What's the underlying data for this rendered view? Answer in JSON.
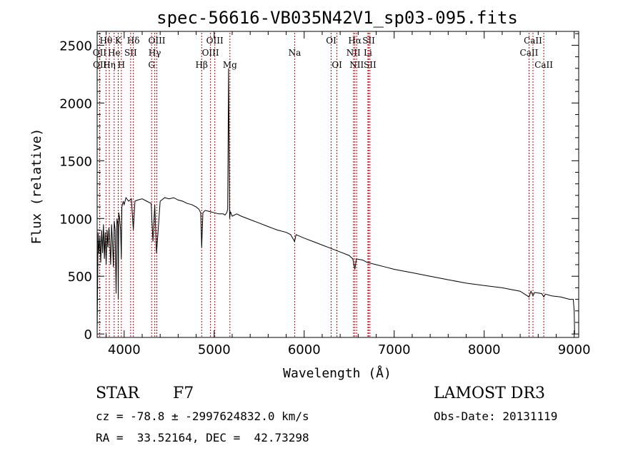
{
  "chart_data": {
    "type": "line",
    "title": "spec-56616-VB035N42V1_sp03-095.fits",
    "xlabel": "Wavelength (Å)",
    "ylabel": "Flux (relative)",
    "xlim": [
      3700,
      9050
    ],
    "ylim": [
      -30,
      2620
    ],
    "xticks": [
      4000,
      5000,
      6000,
      7000,
      8000,
      9000
    ],
    "xtick_labels": [
      "4000",
      "5000",
      "6000",
      "7000",
      "8000",
      "9000"
    ],
    "yticks": [
      0,
      500,
      1000,
      1500,
      2000,
      2500
    ],
    "ytick_labels": [
      "0",
      "500",
      "1000",
      "1500",
      "2000",
      "2500"
    ],
    "grid": false,
    "series": [
      {
        "name": "flux",
        "x": [
          3700,
          3710,
          3720,
          3730,
          3740,
          3750,
          3760,
          3770,
          3780,
          3790,
          3800,
          3810,
          3820,
          3830,
          3840,
          3850,
          3860,
          3870,
          3880,
          3890,
          3900,
          3910,
          3920,
          3930,
          3934,
          3940,
          3950,
          3960,
          3968,
          3975,
          3990,
          4000,
          4020,
          4050,
          4080,
          4102,
          4120,
          4150,
          4200,
          4250,
          4300,
          4320,
          4340,
          4360,
          4400,
          4450,
          4500,
          4550,
          4600,
          4650,
          4700,
          4750,
          4800,
          4830,
          4850,
          4861,
          4875,
          4900,
          4950,
          5000,
          5050,
          5100,
          5120,
          5140,
          5150,
          5160,
          5167,
          5172,
          5180,
          5200,
          5250,
          5300,
          5400,
          5500,
          5600,
          5700,
          5800,
          5850,
          5893,
          5910,
          6000,
          6100,
          6200,
          6300,
          6400,
          6500,
          6540,
          6563,
          6580,
          6650,
          6700,
          6800,
          6900,
          7000,
          7200,
          7400,
          7600,
          7800,
          8000,
          8200,
          8400,
          8498,
          8520,
          8542,
          8560,
          8600,
          8640,
          8662,
          8680,
          8750,
          8850,
          8950,
          8990,
          9000,
          9005
        ],
        "values": [
          0,
          880,
          700,
          850,
          620,
          900,
          700,
          950,
          650,
          880,
          600,
          900,
          750,
          920,
          820,
          600,
          950,
          800,
          580,
          980,
          900,
          350,
          1000,
          950,
          300,
          1050,
          1000,
          900,
          650,
          1100,
          1150,
          1120,
          1180,
          1150,
          1170,
          900,
          1150,
          1160,
          1170,
          1150,
          1130,
          800,
          1120,
          700,
          1150,
          1180,
          1170,
          1180,
          1160,
          1150,
          1130,
          1120,
          1100,
          1080,
          1050,
          750,
          1050,
          1070,
          1060,
          1050,
          1040,
          1040,
          1030,
          1050,
          1080,
          2300,
          1500,
          1000,
          1060,
          1020,
          1040,
          1020,
          990,
          960,
          930,
          900,
          880,
          860,
          800,
          860,
          830,
          800,
          770,
          740,
          710,
          680,
          650,
          560,
          650,
          640,
          620,
          600,
          580,
          560,
          530,
          500,
          470,
          440,
          420,
          400,
          370,
          320,
          370,
          330,
          360,
          355,
          350,
          320,
          345,
          330,
          320,
          300,
          300,
          200,
          0
        ]
      }
    ],
    "line_markers": [
      {
        "label": "Hθ",
        "wavelength": 3798,
        "row": 1
      },
      {
        "label": "OII",
        "wavelength": 3727,
        "row": 2
      },
      {
        "label": "OII",
        "wavelength": 3729,
        "row": 3
      },
      {
        "label": "He",
        "wavelength": 3889,
        "row": 2
      },
      {
        "label": "Hη",
        "wavelength": 3835,
        "row": 3
      },
      {
        "label": "K",
        "wavelength": 3934,
        "row": 1
      },
      {
        "label": "H",
        "wavelength": 3969,
        "row": 3
      },
      {
        "label": "SII",
        "wavelength": 4072,
        "row": 2
      },
      {
        "label": "Hδ",
        "wavelength": 4102,
        "row": 1
      },
      {
        "label": "OIII",
        "wavelength": 4363,
        "row": 1
      },
      {
        "label": "Hγ",
        "wavelength": 4340,
        "row": 2
      },
      {
        "label": "G",
        "wavelength": 4305,
        "row": 3
      },
      {
        "label": "Hβ",
        "wavelength": 4861,
        "row": 3
      },
      {
        "label": "OIII",
        "wavelength": 5007,
        "row": 1
      },
      {
        "label": "OIII",
        "wavelength": 4959,
        "row": 2
      },
      {
        "label": "Mg",
        "wavelength": 5175,
        "row": 3
      },
      {
        "label": "Na",
        "wavelength": 5894,
        "row": 2
      },
      {
        "label": "OI",
        "wavelength": 6300,
        "row": 1
      },
      {
        "label": "OI",
        "wavelength": 6364,
        "row": 3
      },
      {
        "label": "Hα",
        "wavelength": 6563,
        "row": 1
      },
      {
        "label": "NII",
        "wavelength": 6548,
        "row": 2
      },
      {
        "label": "NII",
        "wavelength": 6583,
        "row": 3
      },
      {
        "label": "SII",
        "wavelength": 6717,
        "row": 1
      },
      {
        "label": "Li",
        "wavelength": 6708,
        "row": 2
      },
      {
        "label": "SII",
        "wavelength": 6731,
        "row": 3
      },
      {
        "label": "CaII",
        "wavelength": 8542,
        "row": 1
      },
      {
        "label": "CaII",
        "wavelength": 8498,
        "row": 2
      },
      {
        "label": "CaII",
        "wavelength": 8662,
        "row": 3
      }
    ]
  },
  "info": {
    "class_label": "STAR",
    "subclass": "F7",
    "survey": "LAMOST DR3",
    "redshift_line": "cz = -78.8 ± -2997624832.0 km/s",
    "obs_date_line": "Obs-Date: 20131119",
    "coords_line": "RA =  33.52164, DEC =  42.73298"
  },
  "colors": {
    "axis": "#000000",
    "spectrum": "#000000",
    "line_marker": "#c00000"
  }
}
